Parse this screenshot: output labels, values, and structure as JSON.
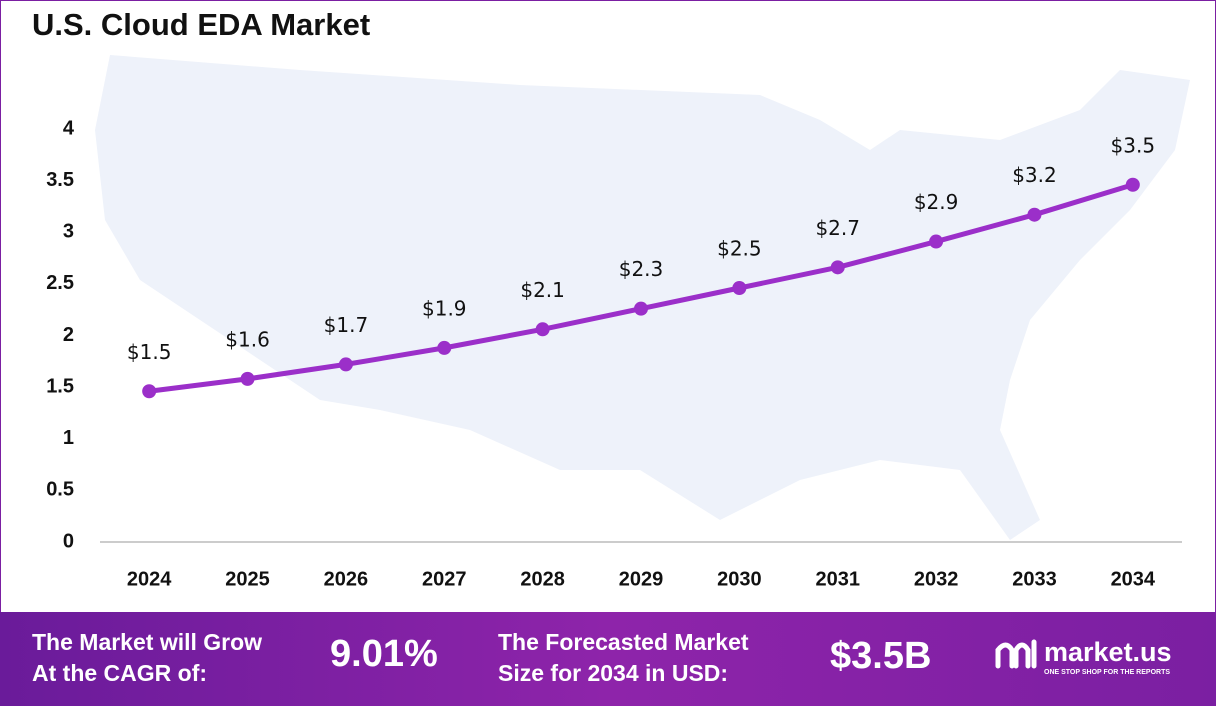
{
  "chart_data": {
    "type": "line",
    "title": "U.S. Cloud EDA Market",
    "categories": [
      "2024",
      "2025",
      "2026",
      "2027",
      "2028",
      "2029",
      "2030",
      "2031",
      "2032",
      "2033",
      "2034"
    ],
    "series": [
      {
        "color": "#9b2fc9",
        "values": [
          1.46,
          1.58,
          1.72,
          1.88,
          2.06,
          2.26,
          2.46,
          2.66,
          2.91,
          3.17,
          3.46
        ],
        "value_labels": [
          "$1.5",
          "$1.6",
          "$1.7",
          "$1.9",
          "$2.1",
          "$2.3",
          "$2.5",
          "$2.7",
          "$2.9",
          "$3.2",
          "$3.5"
        ]
      }
    ],
    "ylim": [
      0,
      4
    ],
    "yticks": [
      0,
      0.5,
      1,
      1.5,
      2,
      2.5,
      3,
      3.5,
      4
    ],
    "grid": false
  },
  "footer": {
    "cagr_text": [
      "The Market will Grow",
      "At the CAGR of:"
    ],
    "cagr_value": "9.01%",
    "forecast_text": [
      "The Forecasted Market",
      "Size for 2034 in USD:"
    ],
    "forecast_value": "$3.5B",
    "brand": "market.us",
    "tagline": "ONE STOP SHOP FOR THE REPORTS"
  }
}
